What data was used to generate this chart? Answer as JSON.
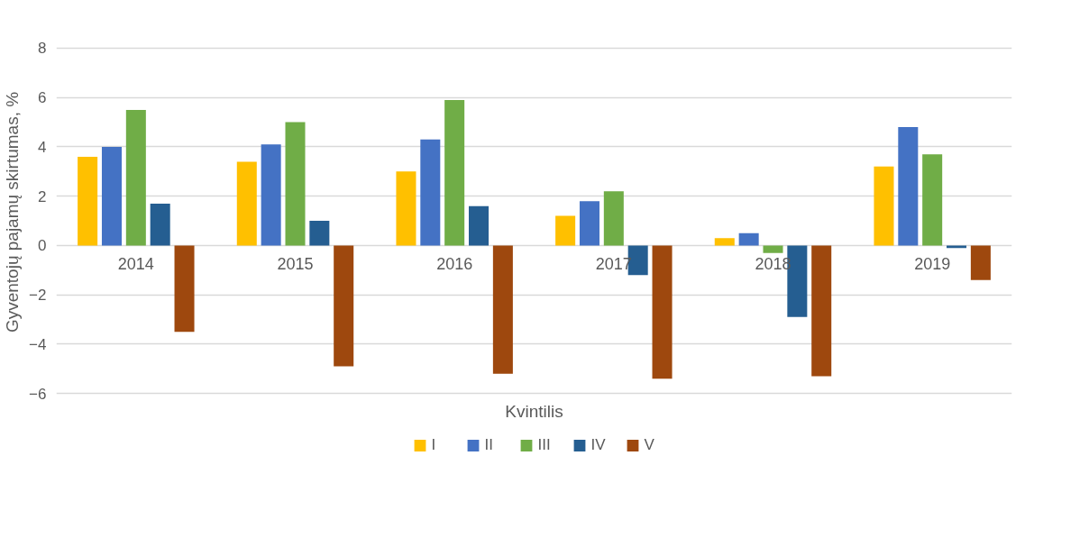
{
  "chart_data": {
    "type": "bar",
    "xlabel": "Kvintilis",
    "ylabel": "Gyventojų pajamų skirtumas, %",
    "categories": [
      "2014",
      "2015",
      "2016",
      "2017",
      "2018",
      "2019"
    ],
    "series": [
      {
        "name": "I",
        "color": "#ffc000",
        "values": [
          3.6,
          3.4,
          3.0,
          1.2,
          0.3,
          3.2
        ]
      },
      {
        "name": "II",
        "color": "#4472c4",
        "values": [
          4.0,
          4.1,
          4.3,
          1.8,
          0.5,
          4.8
        ]
      },
      {
        "name": "III",
        "color": "#70ad47",
        "values": [
          5.5,
          5.0,
          5.9,
          2.2,
          -0.3,
          3.7
        ]
      },
      {
        "name": "IV",
        "color": "#255e91",
        "values": [
          1.7,
          1.0,
          1.6,
          -1.2,
          -2.9,
          -0.1
        ]
      },
      {
        "name": "V",
        "color": "#9e480e",
        "values": [
          -3.5,
          -4.9,
          -5.2,
          -5.4,
          -5.3,
          -1.4
        ]
      }
    ],
    "ylim": [
      -6,
      8
    ],
    "yticks": [
      -6,
      -4,
      -2,
      0,
      2,
      4,
      6,
      8
    ],
    "grid": "y",
    "legend": "bottom"
  }
}
